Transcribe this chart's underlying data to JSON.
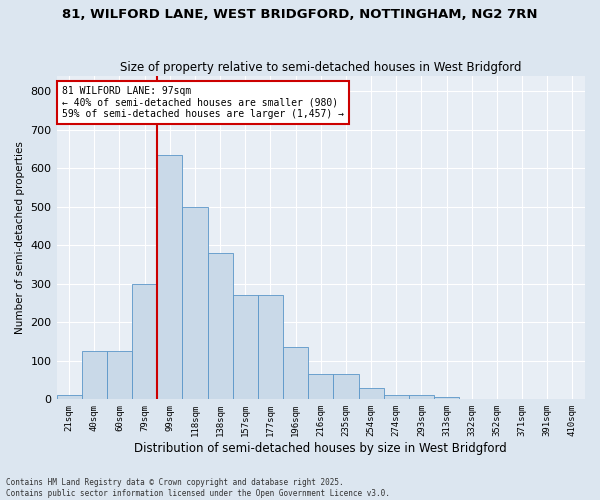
{
  "title1": "81, WILFORD LANE, WEST BRIDGFORD, NOTTINGHAM, NG2 7RN",
  "title2": "Size of property relative to semi-detached houses in West Bridgford",
  "xlabel": "Distribution of semi-detached houses by size in West Bridgford",
  "ylabel": "Number of semi-detached properties",
  "bin_labels": [
    "21sqm",
    "40sqm",
    "60sqm",
    "79sqm",
    "99sqm",
    "118sqm",
    "138sqm",
    "157sqm",
    "177sqm",
    "196sqm",
    "216sqm",
    "235sqm",
    "254sqm",
    "274sqm",
    "293sqm",
    "313sqm",
    "332sqm",
    "352sqm",
    "371sqm",
    "391sqm",
    "410sqm"
  ],
  "bar_values": [
    10,
    125,
    125,
    300,
    635,
    500,
    380,
    270,
    270,
    135,
    65,
    65,
    30,
    10,
    10,
    5,
    2,
    1,
    0,
    0,
    0
  ],
  "bar_color": "#c9d9e8",
  "bar_edge_color": "#5a96c8",
  "vline_color": "#cc0000",
  "vline_x": 3.5,
  "annotation_line1": "81 WILFORD LANE: 97sqm",
  "annotation_line2": "← 40% of semi-detached houses are smaller (980)",
  "annotation_line3": "59% of semi-detached houses are larger (1,457) →",
  "annotation_box_color": "#ffffff",
  "annotation_box_edge": "#cc0000",
  "ylim": [
    0,
    840
  ],
  "yticks": [
    0,
    100,
    200,
    300,
    400,
    500,
    600,
    700,
    800
  ],
  "background_color": "#dce6f0",
  "plot_bg_color": "#e8eef5",
  "footer_line1": "Contains HM Land Registry data © Crown copyright and database right 2025.",
  "footer_line2": "Contains public sector information licensed under the Open Government Licence v3.0."
}
